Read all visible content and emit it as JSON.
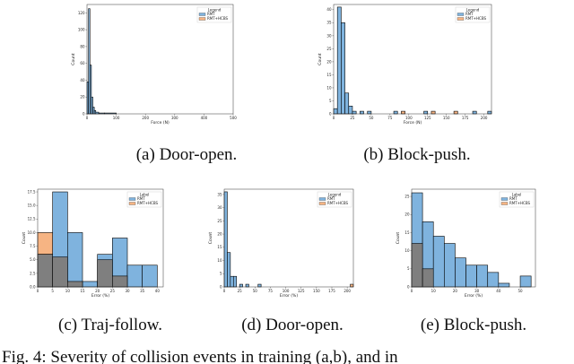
{
  "colors": {
    "blue": "#7fb3de",
    "orange": "#f6b483",
    "overlap": "#7f7f7f",
    "edge": "#000000"
  },
  "figure_caption": "Fig. 4: Severity of collision events in training (a,b), and in",
  "chart_data": [
    {
      "id": "a",
      "type": "bar",
      "caption": "(a) Door-open.",
      "xlabel": "Force (N)",
      "ylabel": "Count",
      "xticks": [
        "0",
        "100",
        "200",
        "300",
        "400",
        "500"
      ],
      "yticks": [
        "0",
        "20",
        "40",
        "60",
        "80",
        "100",
        "120"
      ],
      "xlim": [
        0,
        500
      ],
      "ylim": [
        0,
        130
      ],
      "legend_title": "Legend",
      "legend": [
        "RMT",
        "RMT+HCBS"
      ],
      "series": [
        {
          "name": "RMT",
          "color": "blue",
          "bins": [
            [
              0,
              5,
              38
            ],
            [
              5,
              10,
              125
            ],
            [
              10,
              15,
              58
            ],
            [
              15,
              20,
              20
            ],
            [
              20,
              25,
              8
            ],
            [
              25,
              30,
              4
            ],
            [
              30,
              40,
              2
            ],
            [
              40,
              60,
              1
            ],
            [
              60,
              100,
              1
            ]
          ]
        },
        {
          "name": "RMT+HCBS",
          "color": "orange",
          "bins": []
        }
      ]
    },
    {
      "id": "b",
      "type": "bar",
      "caption": "(b) Block-push.",
      "xlabel": "Force (N)",
      "ylabel": "Count",
      "xticks": [
        "0",
        "25",
        "50",
        "75",
        "100",
        "125",
        "150",
        "175",
        "200"
      ],
      "yticks": [
        "0",
        "5",
        "10",
        "15",
        "20",
        "25",
        "30",
        "35",
        "40"
      ],
      "xlim": [
        0,
        210
      ],
      "ylim": [
        0,
        42
      ],
      "legend_title": "Legend",
      "legend": [
        "RMT",
        "RMT+HCBS"
      ],
      "series": [
        {
          "name": "RMT",
          "color": "blue",
          "bins": [
            [
              0,
              5,
              2
            ],
            [
              5,
              10,
              41
            ],
            [
              10,
              15,
              35
            ],
            [
              15,
              20,
              8
            ],
            [
              20,
              25,
              3
            ],
            [
              25,
              30,
              1
            ],
            [
              35,
              40,
              1
            ],
            [
              45,
              50,
              1
            ],
            [
              80,
              85,
              1
            ],
            [
              120,
              125,
              1
            ],
            [
              185,
              190,
              1
            ],
            [
              205,
              210,
              1
            ]
          ]
        },
        {
          "name": "RMT+HCBS",
          "color": "orange",
          "bins": [
            [
              90,
              95,
              1
            ],
            [
              130,
              135,
              1
            ],
            [
              160,
              165,
              1
            ]
          ]
        }
      ]
    },
    {
      "id": "c",
      "type": "bar",
      "caption": "(c) Traj-follow.",
      "xlabel": "Error (%)",
      "ylabel": "Count",
      "xticks": [
        "0",
        "5",
        "10",
        "15",
        "20",
        "25",
        "30",
        "35",
        "40"
      ],
      "yticks": [
        "0.0",
        "2.5",
        "5.0",
        "7.5",
        "10.0",
        "12.5",
        "15.0",
        "17.5"
      ],
      "xlim": [
        0,
        42
      ],
      "ylim": [
        0,
        18
      ],
      "legend_title": "Label",
      "legend": [
        "RMT",
        "RMT+HCBS"
      ],
      "series": [
        {
          "name": "RMT",
          "color": "blue",
          "bins": [
            [
              0,
              5,
              6
            ],
            [
              5,
              10,
              17.5
            ],
            [
              10,
              15,
              10
            ],
            [
              15,
              20,
              1
            ],
            [
              20,
              25,
              6
            ],
            [
              25,
              30,
              9
            ],
            [
              30,
              35,
              4
            ],
            [
              35,
              40,
              4
            ]
          ]
        },
        {
          "name": "RMT+HCBS",
          "color": "orange",
          "bins": [
            [
              0,
              5,
              10
            ],
            [
              5,
              10,
              5.5
            ],
            [
              10,
              15,
              1
            ],
            [
              20,
              25,
              5
            ],
            [
              25,
              30,
              2
            ]
          ]
        }
      ]
    },
    {
      "id": "d",
      "type": "bar",
      "caption": "(d) Door-open.",
      "xlabel": "Error (%)",
      "ylabel": "Count",
      "xticks": [
        "0",
        "25",
        "50",
        "75",
        "100",
        "125",
        "150",
        "175",
        "200"
      ],
      "yticks": [
        "0",
        "5",
        "10",
        "15",
        "20",
        "25",
        "30",
        "35"
      ],
      "xlim": [
        0,
        210
      ],
      "ylim": [
        0,
        37
      ],
      "legend_title": "Legend",
      "legend": [
        "RMT",
        "RMT+HCBS"
      ],
      "series": [
        {
          "name": "RMT",
          "color": "blue",
          "bins": [
            [
              0,
              5,
              36
            ],
            [
              5,
              10,
              13
            ],
            [
              10,
              15,
              4
            ],
            [
              15,
              20,
              4
            ],
            [
              25,
              30,
              1
            ],
            [
              35,
              40,
              1
            ],
            [
              55,
              60,
              1
            ]
          ]
        },
        {
          "name": "RMT+HCBS",
          "color": "orange",
          "bins": [
            [
              205,
              210,
              1
            ]
          ]
        }
      ]
    },
    {
      "id": "e",
      "type": "bar",
      "caption": "(e) Block-push.",
      "xlabel": "Error (%)",
      "ylabel": "Count",
      "xticks": [
        "0",
        "10",
        "20",
        "30",
        "40",
        "50"
      ],
      "yticks": [
        "0",
        "5",
        "10",
        "15",
        "20",
        "25"
      ],
      "xlim": [
        0,
        57
      ],
      "ylim": [
        0,
        27
      ],
      "legend_title": "Label",
      "legend": [
        "RMT",
        "RMT+HCBS"
      ],
      "series": [
        {
          "name": "RMT",
          "color": "blue",
          "bins": [
            [
              0,
              5,
              26
            ],
            [
              5,
              10,
              18
            ],
            [
              10,
              15,
              14
            ],
            [
              15,
              20,
              12
            ],
            [
              20,
              25,
              8
            ],
            [
              25,
              30,
              6
            ],
            [
              30,
              35,
              6
            ],
            [
              35,
              40,
              4
            ],
            [
              40,
              45,
              1
            ],
            [
              45,
              50,
              0
            ],
            [
              50,
              55,
              3
            ]
          ]
        },
        {
          "name": "RMT+HCBS",
          "color": "orange",
          "bins": [
            [
              0,
              5,
              12
            ],
            [
              5,
              10,
              5
            ]
          ]
        }
      ]
    }
  ]
}
